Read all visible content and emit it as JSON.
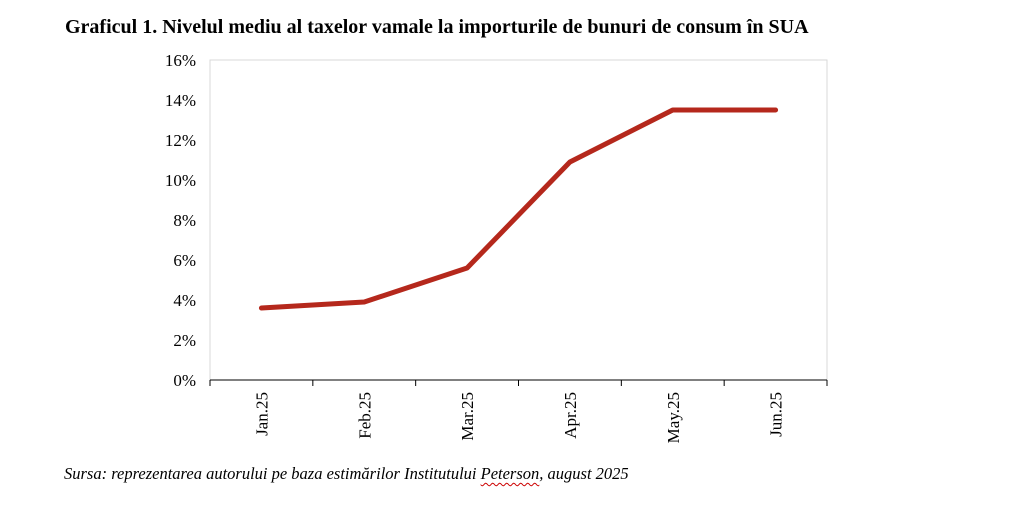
{
  "title": "Graficul 1. Nivelul mediu al taxelor vamale la importurile de bunuri de consum în SUA",
  "source": {
    "before": "Sursa: reprezentarea autorului pe baza estimărilor Institutului ",
    "underlined": "Peterson",
    "after": ", august 2025"
  },
  "chart_data": {
    "type": "line",
    "categories": [
      "Jan.25",
      "Feb.25",
      "Mar.25",
      "Apr.25",
      "May.25",
      "Jun.25"
    ],
    "series": [
      {
        "values": [
          3.6,
          3.9,
          5.6,
          10.9,
          13.5,
          13.5
        ],
        "color": "#b5281c"
      }
    ],
    "ylim": [
      0,
      16
    ],
    "yticks": [
      0,
      2,
      4,
      6,
      8,
      10,
      12,
      14,
      16
    ],
    "ytick_labels": [
      "0%",
      "2%",
      "4%",
      "6%",
      "8%",
      "10%",
      "12%",
      "14%",
      "16%"
    ],
    "grid": false
  }
}
